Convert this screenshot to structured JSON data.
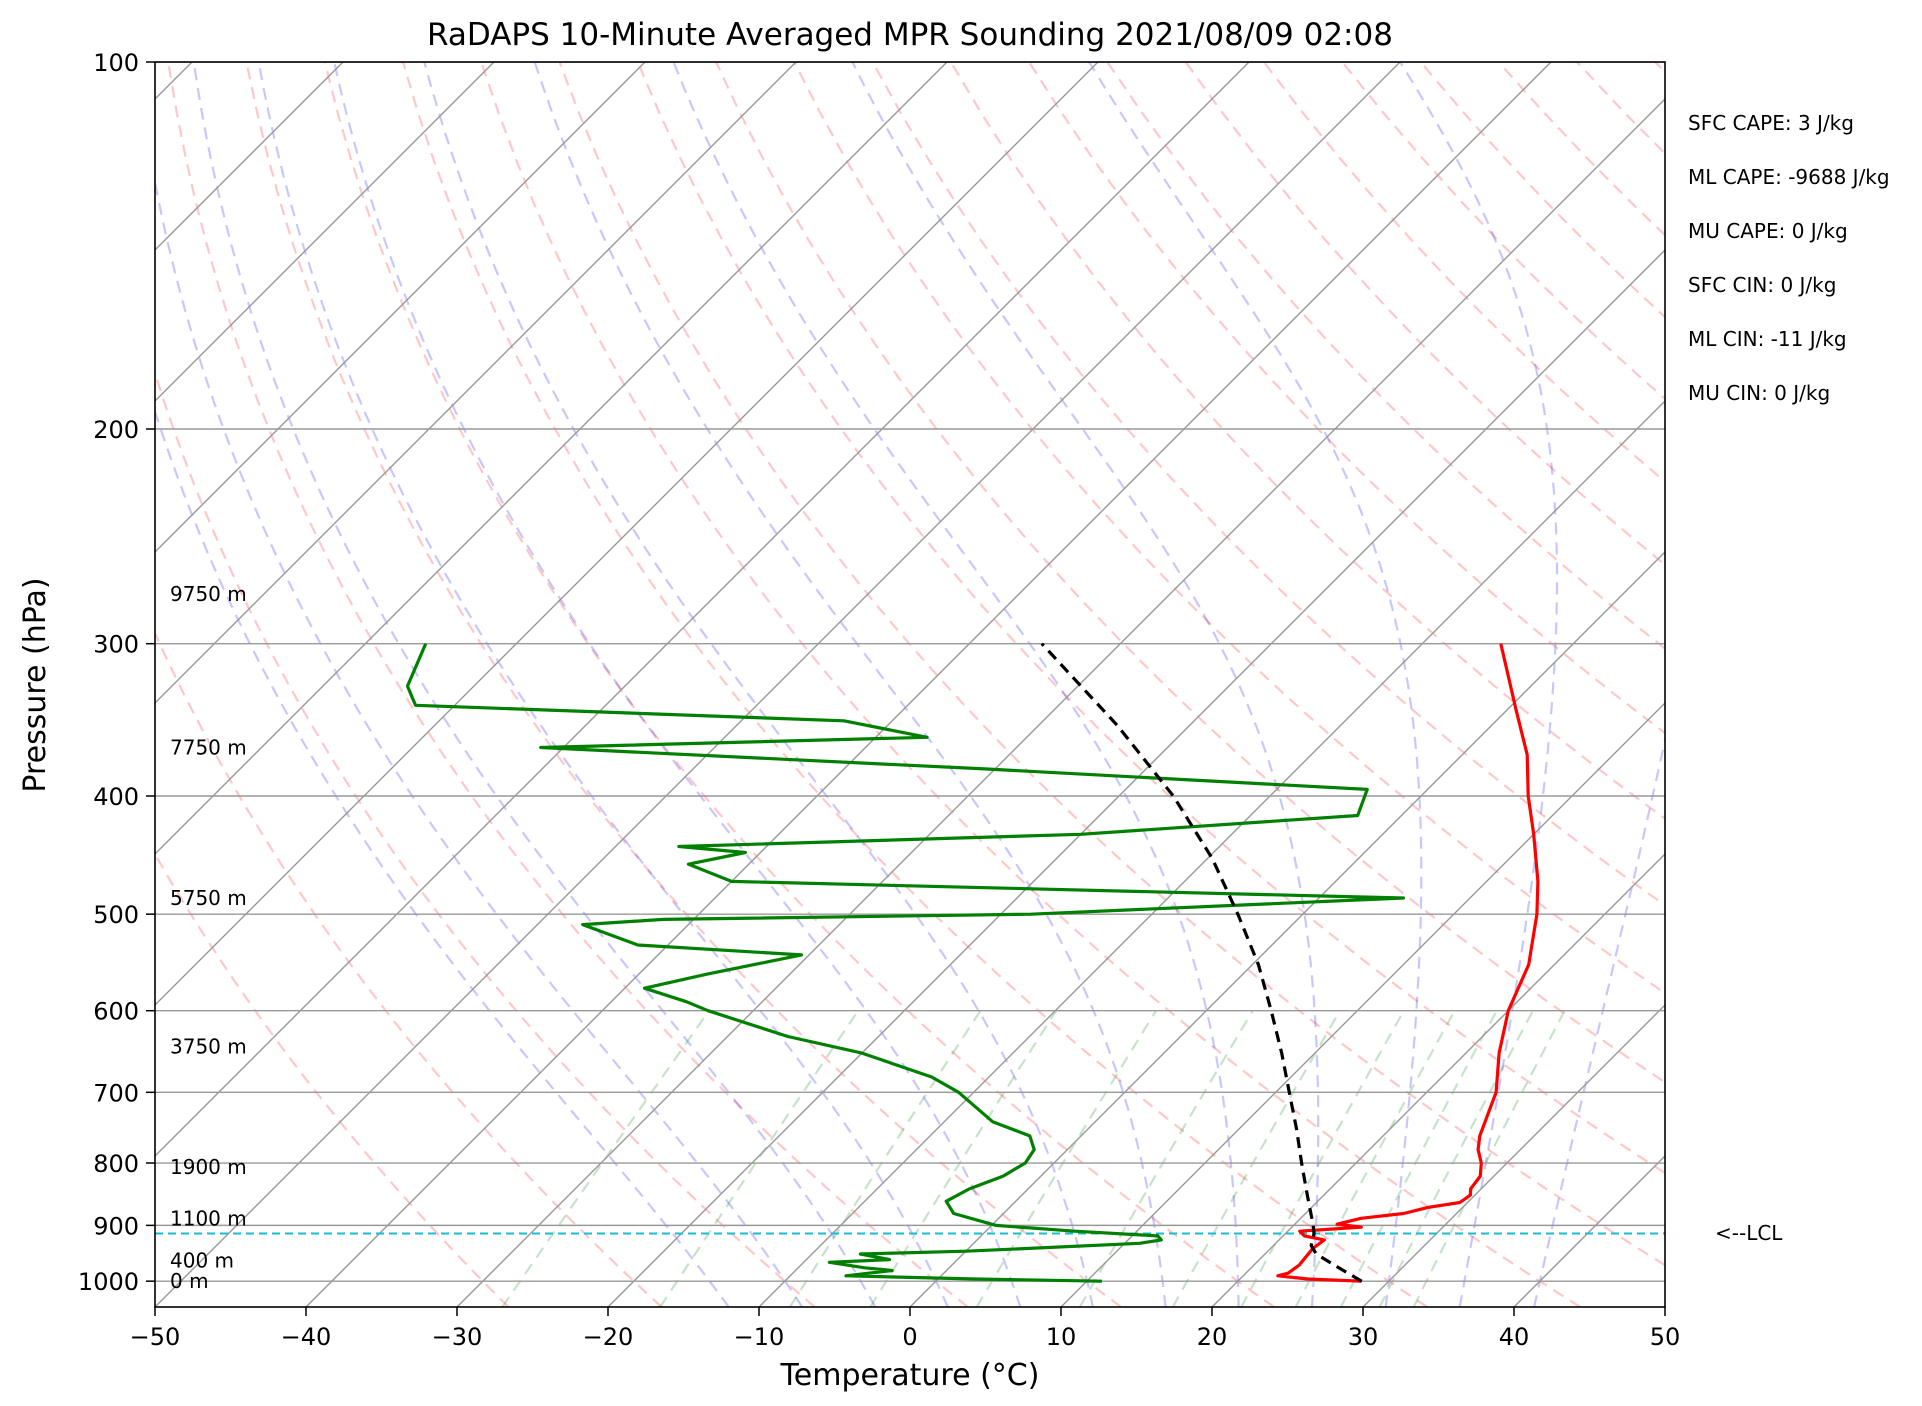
{
  "chart_data": {
    "type": "line",
    "title": "RaDAPS 10-Minute Averaged MPR Sounding 2021/08/09 02:08",
    "xlabel": "Temperature (°C)",
    "ylabel": "Pressure (hPa)",
    "xlim": [
      -50,
      50
    ],
    "ylim": [
      1050,
      100
    ],
    "y_scale": "log",
    "skew": true,
    "grid": true,
    "x_ticks": [
      -50,
      -40,
      -30,
      -20,
      -10,
      0,
      10,
      20,
      30,
      40,
      50
    ],
    "x_tick_labels": [
      "−50",
      "−40",
      "−30",
      "−20",
      "−10",
      "0",
      "10",
      "20",
      "30",
      "40",
      "50"
    ],
    "y_ticks": [
      100,
      200,
      300,
      400,
      500,
      600,
      700,
      800,
      900,
      1000
    ],
    "y_tick_labels": [
      "100",
      "200",
      "300",
      "400",
      "500",
      "600",
      "700",
      "800",
      "900",
      "1000"
    ],
    "height_labels": [
      {
        "text": "9750 m",
        "p": 273
      },
      {
        "text": "7750 m",
        "p": 365
      },
      {
        "text": "5750 m",
        "p": 485
      },
      {
        "text": "3750 m",
        "p": 642
      },
      {
        "text": "1900 m",
        "p": 806
      },
      {
        "text": "1100 m",
        "p": 888
      },
      {
        "text": "400 m",
        "p": 962
      },
      {
        "text": "0 m",
        "p": 1000
      }
    ],
    "indices": [
      "SFC CAPE: 3 J/kg",
      "ML CAPE: -9688 J/kg",
      "MU CAPE: 0 J/kg",
      "SFC CIN: 0 J/kg",
      "ML CIN: -11 J/kg",
      "MU CIN: 0 J/kg"
    ],
    "lcl": {
      "label": "<--LCL",
      "p": 914
    },
    "series": [
      {
        "color": "#ff0000",
        "values": [
          [
            1000,
            28.2
          ],
          [
            996,
            24.5
          ],
          [
            990,
            22.3
          ],
          [
            985,
            22.8
          ],
          [
            970,
            23.0
          ],
          [
            955,
            22.9
          ],
          [
            940,
            22.8
          ],
          [
            925,
            23.0
          ],
          [
            918,
            21.4
          ],
          [
            910,
            20.8
          ],
          [
            903,
            24.6
          ],
          [
            898,
            22.8
          ],
          [
            888,
            24.0
          ],
          [
            880,
            26.5
          ],
          [
            870,
            27.7
          ],
          [
            862,
            29.5
          ],
          [
            850,
            29.7
          ],
          [
            840,
            29.3
          ],
          [
            820,
            29.1
          ],
          [
            800,
            28.3
          ],
          [
            780,
            27.2
          ],
          [
            760,
            26.4
          ],
          [
            700,
            24.6
          ],
          [
            650,
            22.2
          ],
          [
            600,
            20.0
          ],
          [
            550,
            18.3
          ],
          [
            500,
            15.5
          ],
          [
            470,
            13.4
          ],
          [
            430,
            10.0
          ],
          [
            400,
            7.1
          ],
          [
            370,
            4.3
          ],
          [
            340,
            0.6
          ],
          [
            300,
            -4.8
          ]
        ]
      },
      {
        "color": "#008000",
        "values": [
          [
            1000,
            11.0
          ],
          [
            996,
            2.5
          ],
          [
            990,
            -6.3
          ],
          [
            980,
            -3.6
          ],
          [
            975,
            -5.6
          ],
          [
            965,
            -8.3
          ],
          [
            960,
            -4.5
          ],
          [
            950,
            -6.8
          ],
          [
            945,
            0.0
          ],
          [
            940,
            4.0
          ],
          [
            931,
            11.0
          ],
          [
            925,
            12.2
          ],
          [
            918,
            11.7
          ],
          [
            910,
            5.9
          ],
          [
            900,
            0.3
          ],
          [
            880,
            -3.3
          ],
          [
            860,
            -4.6
          ],
          [
            840,
            -3.9
          ],
          [
            820,
            -2.5
          ],
          [
            800,
            -1.9
          ],
          [
            780,
            -2.2
          ],
          [
            760,
            -3.4
          ],
          [
            740,
            -6.8
          ],
          [
            700,
            -11.0
          ],
          [
            680,
            -13.8
          ],
          [
            650,
            -20.0
          ],
          [
            630,
            -26.0
          ],
          [
            600,
            -33.0
          ],
          [
            590,
            -35.0
          ],
          [
            575,
            -38.7
          ],
          [
            560,
            -35.5
          ],
          [
            540,
            -30.5
          ],
          [
            530,
            -42.0
          ],
          [
            510,
            -47.0
          ],
          [
            505,
            -42.0
          ],
          [
            500,
            -18.0
          ],
          [
            485,
            5.6
          ],
          [
            470,
            -40.0
          ],
          [
            455,
            -44.0
          ],
          [
            445,
            -41.0
          ],
          [
            440,
            -45.8
          ],
          [
            430,
            -20.0
          ],
          [
            415,
            -2.9
          ],
          [
            395,
            -4.0
          ],
          [
            380,
            -30.7
          ],
          [
            365,
            -61.5
          ],
          [
            358,
            -36.6
          ],
          [
            347,
            -43.2
          ],
          [
            337,
            -72.6
          ],
          [
            325,
            -74.4
          ],
          [
            300,
            -76.0
          ]
        ]
      },
      {
        "color": "#000000",
        "dashed": true,
        "values": [
          [
            1000,
            28.2
          ],
          [
            975,
            25.8
          ],
          [
            950,
            23.4
          ],
          [
            935,
            22.5
          ],
          [
            914,
            21.9
          ],
          [
            900,
            21.3
          ],
          [
            850,
            18.9
          ],
          [
            800,
            16.4
          ],
          [
            750,
            13.8
          ],
          [
            700,
            10.9
          ],
          [
            650,
            7.8
          ],
          [
            600,
            4.3
          ],
          [
            550,
            0.4
          ],
          [
            500,
            -4.3
          ],
          [
            450,
            -9.7
          ],
          [
            400,
            -16.4
          ],
          [
            350,
            -24.8
          ],
          [
            300,
            -35.2
          ]
        ]
      }
    ]
  }
}
